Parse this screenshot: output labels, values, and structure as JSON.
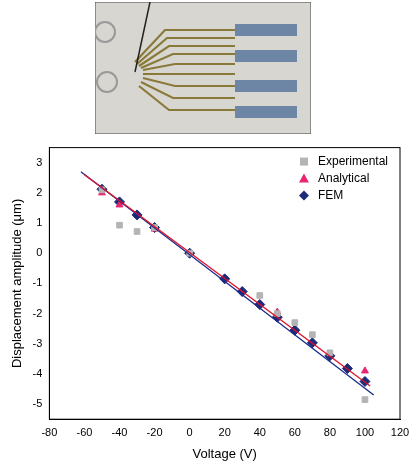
{
  "chart_data": {
    "type": "scatter",
    "x_label": "Voltage (V)",
    "y_label": "Displacement amplitude (μm)",
    "xlim": [
      -80,
      120
    ],
    "xticks": [
      -80,
      -60,
      -40,
      -20,
      0,
      20,
      40,
      60,
      80,
      100,
      120
    ],
    "ylim": [
      -5.5,
      3.5
    ],
    "yticks": [
      -5,
      -4,
      -3,
      -2,
      -1,
      0,
      1,
      2,
      3
    ],
    "grid": false,
    "legend": "upper right",
    "series": [
      {
        "type": "line",
        "color": "#e0102a",
        "marker": "none",
        "line_style": "solid",
        "x": [
          -60,
          103
        ],
        "values": [
          2.6,
          -4.4
        ]
      },
      {
        "type": "line",
        "color": "#1a2a8c",
        "marker": "none",
        "line_style": "solid",
        "x": [
          -62,
          105
        ],
        "values": [
          2.7,
          -4.7
        ]
      },
      {
        "name": "Experimental",
        "type": "scatter",
        "color": "#b4b4b4",
        "marker": "square",
        "x": [
          -50,
          -40,
          -30,
          -20,
          0,
          40,
          50,
          60,
          70,
          80,
          100
        ],
        "values": [
          2.1,
          0.93,
          0.72,
          0.85,
          0,
          -1.4,
          -2.0,
          -2.3,
          -2.7,
          -3.3,
          -4.85
        ]
      },
      {
        "name": "Analytical",
        "type": "scatter",
        "color": "#e8256e",
        "marker": "triangle",
        "x": [
          -50,
          -40,
          -20,
          50,
          100
        ],
        "values": [
          2.0,
          1.6,
          0.8,
          -1.95,
          -3.9
        ]
      },
      {
        "name": "FEM",
        "type": "scatter",
        "color": "#1c2a78",
        "marker": "diamond",
        "x": [
          -50,
          -40,
          -30,
          -20,
          0,
          20,
          30,
          40,
          50,
          60,
          70,
          80,
          90,
          100
        ],
        "values": [
          2.12,
          1.7,
          1.27,
          0.85,
          0,
          -0.85,
          -1.27,
          -1.7,
          -2.12,
          -2.55,
          -2.97,
          -3.4,
          -3.82,
          -4.25
        ]
      }
    ]
  }
}
